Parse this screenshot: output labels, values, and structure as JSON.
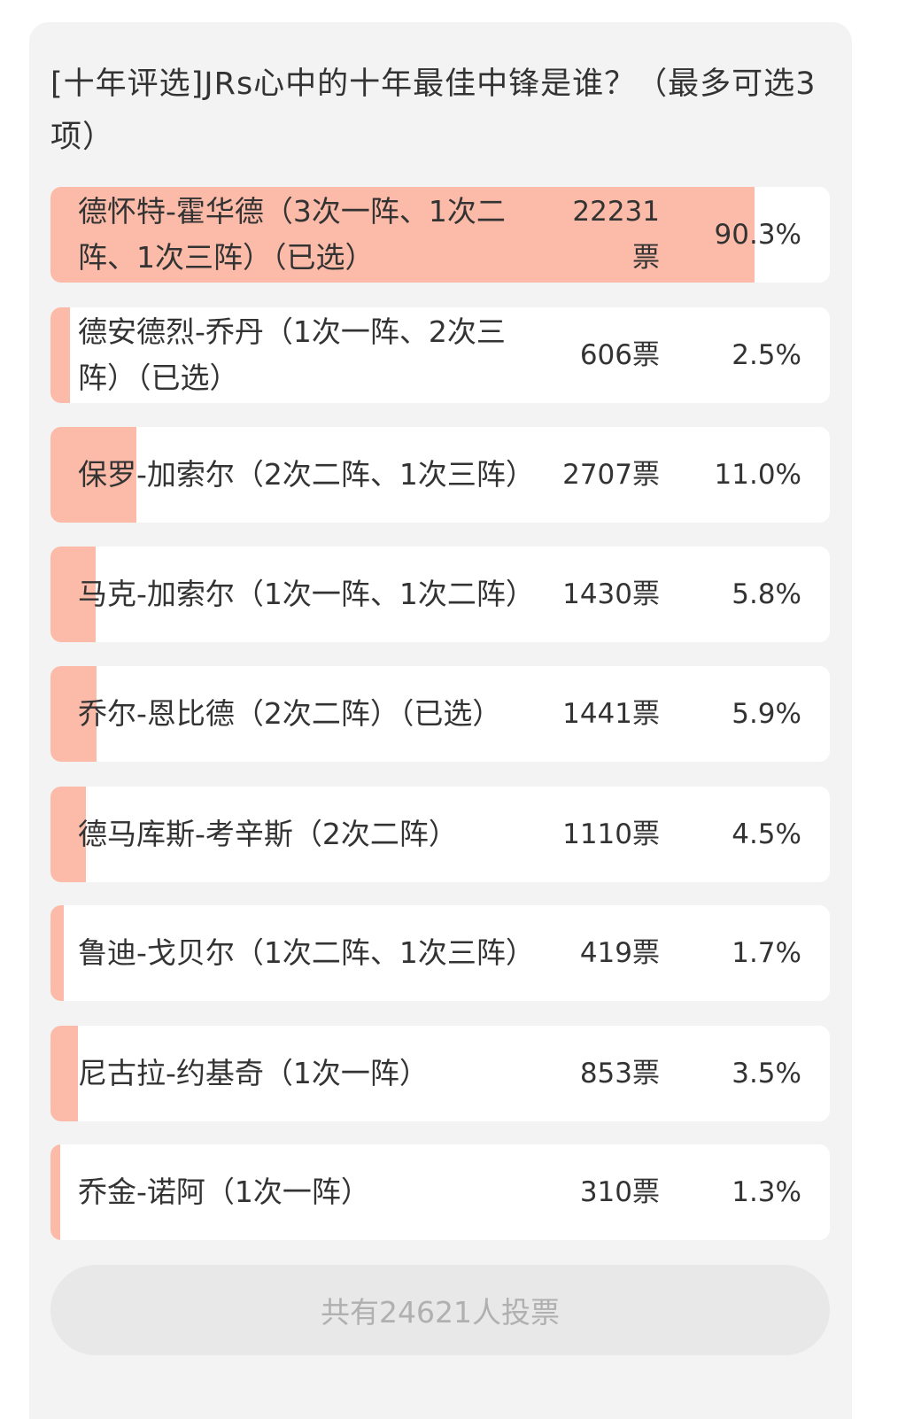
{
  "poll": {
    "title": "[十年评选]JRs心中的十年最佳中锋是谁？（最多可选3项）",
    "bar_color": "#fbbba8",
    "options": [
      {
        "label": "德怀特-霍华德（3次一阵、1次二阵、1次三阵）（已选）",
        "votes": "22231票",
        "percent": "90.3%",
        "value": 90.3
      },
      {
        "label": "德安德烈-乔丹（1次一阵、2次三阵）（已选）",
        "votes": "606票",
        "percent": "2.5%",
        "value": 2.5
      },
      {
        "label": "保罗-加索尔（2次二阵、1次三阵）",
        "votes": "2707票",
        "percent": "11.0%",
        "value": 11.0
      },
      {
        "label": "马克-加索尔（1次一阵、1次二阵）",
        "votes": "1430票",
        "percent": "5.8%",
        "value": 5.8
      },
      {
        "label": "乔尔-恩比德（2次二阵）（已选）",
        "votes": "1441票",
        "percent": "5.9%",
        "value": 5.9
      },
      {
        "label": "德马库斯-考辛斯（2次二阵）",
        "votes": "1110票",
        "percent": "4.5%",
        "value": 4.5
      },
      {
        "label": "鲁迪-戈贝尔（1次二阵、1次三阵）",
        "votes": "419票",
        "percent": "1.7%",
        "value": 1.7
      },
      {
        "label": "尼古拉-约基奇（1次一阵）",
        "votes": "853票",
        "percent": "3.5%",
        "value": 3.5
      },
      {
        "label": "乔金-诺阿（1次一阵）",
        "votes": "310票",
        "percent": "1.3%",
        "value": 1.3
      }
    ],
    "total_label": "共有24621人投票"
  }
}
